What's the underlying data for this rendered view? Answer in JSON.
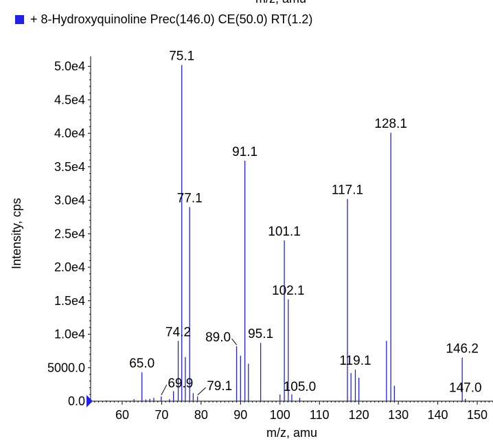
{
  "legend": {
    "label": "+ 8-Hydroxyquinoline Prec(146.0) CE(50.0) RT(1.2)",
    "color": "#1f1fe6"
  },
  "top_cut_label": "m/z, amu",
  "chart_data": {
    "type": "bar",
    "title": "",
    "xlabel": "m/z, amu",
    "ylabel": "Intensity, cps",
    "xlim": [
      52,
      154
    ],
    "ylim": [
      0,
      51500
    ],
    "xticks": [
      60,
      70,
      80,
      90,
      100,
      110,
      120,
      130,
      140,
      150
    ],
    "yticks": [
      0,
      5000,
      10000,
      15000,
      20000,
      25000,
      30000,
      35000,
      40000,
      45000,
      50000
    ],
    "ytick_labels": [
      "0.0",
      "5000.0",
      "1.0e4",
      "1.5e4",
      "2.0e4",
      "2.5e4",
      "3.0e4",
      "3.5e4",
      "4.0e4",
      "4.5e4",
      "5.0e4"
    ],
    "series": [
      {
        "color": "#1f1fe6",
        "peaks": [
          {
            "mz": 56.0,
            "intensity": 120
          },
          {
            "mz": 63.0,
            "intensity": 300
          },
          {
            "mz": 65.0,
            "intensity": 4300
          },
          {
            "mz": 66.0,
            "intensity": 250
          },
          {
            "mz": 67.0,
            "intensity": 350
          },
          {
            "mz": 68.0,
            "intensity": 500
          },
          {
            "mz": 69.9,
            "intensity": 700
          },
          {
            "mz": 72.0,
            "intensity": 300
          },
          {
            "mz": 73.0,
            "intensity": 1500
          },
          {
            "mz": 74.2,
            "intensity": 9000
          },
          {
            "mz": 75.1,
            "intensity": 50200
          },
          {
            "mz": 76.0,
            "intensity": 6600
          },
          {
            "mz": 77.1,
            "intensity": 29000
          },
          {
            "mz": 78.0,
            "intensity": 1200
          },
          {
            "mz": 79.1,
            "intensity": 700
          },
          {
            "mz": 89.0,
            "intensity": 8200
          },
          {
            "mz": 90.0,
            "intensity": 6800
          },
          {
            "mz": 91.1,
            "intensity": 35900
          },
          {
            "mz": 92.0,
            "intensity": 5600
          },
          {
            "mz": 95.1,
            "intensity": 8700
          },
          {
            "mz": 100.0,
            "intensity": 1000
          },
          {
            "mz": 101.1,
            "intensity": 24000
          },
          {
            "mz": 102.1,
            "intensity": 15200
          },
          {
            "mz": 103.0,
            "intensity": 1000
          },
          {
            "mz": 105.0,
            "intensity": 500
          },
          {
            "mz": 117.1,
            "intensity": 30200
          },
          {
            "mz": 118.0,
            "intensity": 4200
          },
          {
            "mz": 119.1,
            "intensity": 4700
          },
          {
            "mz": 120.0,
            "intensity": 3500
          },
          {
            "mz": 127.0,
            "intensity": 9000
          },
          {
            "mz": 128.1,
            "intensity": 40100
          },
          {
            "mz": 129.0,
            "intensity": 2300
          },
          {
            "mz": 146.2,
            "intensity": 6500
          },
          {
            "mz": 147.0,
            "intensity": 350
          }
        ]
      }
    ],
    "peak_labels": [
      "75.1",
      "128.1",
      "91.1",
      "77.1",
      "117.1",
      "101.1",
      "102.1",
      "74.2",
      "89.0",
      "95.1",
      "65.0",
      "119.1",
      "146.2",
      "69.9",
      "79.1",
      "105.0",
      "147.0"
    ]
  }
}
